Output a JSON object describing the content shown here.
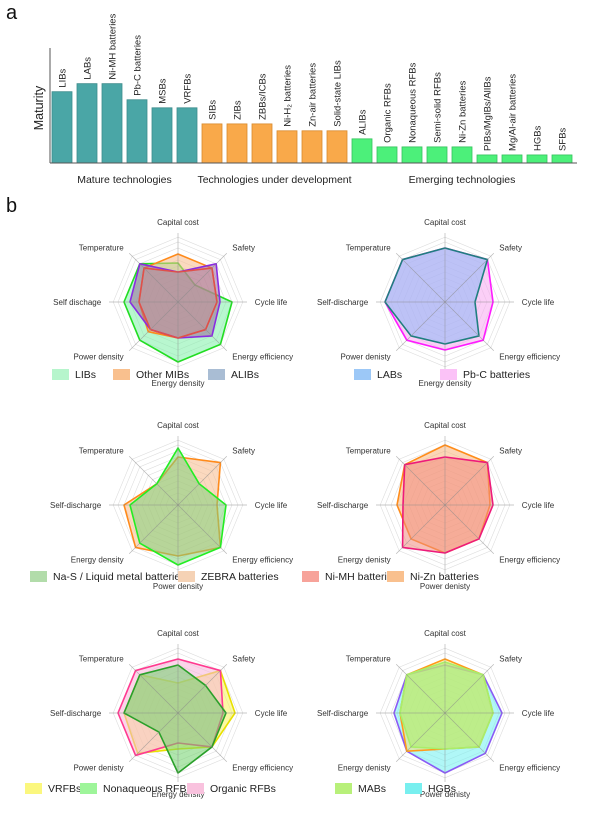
{
  "panel_labels": {
    "a": "a",
    "b": "b"
  },
  "chart_data": [
    {
      "id": "maturity",
      "type": "bar",
      "title": "",
      "xlabel": "",
      "ylabel": "Maturity",
      "ylim": [
        0,
        10
      ],
      "grid": false,
      "groups": [
        {
          "label": "Mature technologies",
          "color": "#4aa6a6",
          "stroke": "#3d8c8c",
          "categories": [
            "LIBs",
            "LABs",
            "Ni-MH batteries",
            "Pb-C batteries",
            "MSBs",
            "VRFBs"
          ],
          "values": [
            6.2,
            6.9,
            6.9,
            5.5,
            4.8,
            4.8
          ]
        },
        {
          "label": "Technologies under development",
          "color": "#f9a94a",
          "stroke": "#d88a2c",
          "categories": [
            "SIBs",
            "ZIBs",
            "ZBBs/ICBs",
            "Ni-H₂ batteries",
            "Zn-air batteries",
            "Solid-state LIBs"
          ],
          "values": [
            3.4,
            3.4,
            3.4,
            2.8,
            2.8,
            2.8
          ]
        },
        {
          "label": "Emerging technologies",
          "color": "#4cf07a",
          "stroke": "#34c25c",
          "categories": [
            "ALIBs",
            "Organic RFBs",
            "Nonaqueous RFBs",
            "Semi-solid RFBs",
            "Ni-Zn batteries",
            "PIBs/MgIBs/AlIBs",
            "Mg/Al-air batteries",
            "HGBs",
            "SFBs"
          ],
          "values": [
            2.1,
            1.4,
            1.4,
            1.4,
            1.4,
            0.7,
            0.7,
            0.7,
            0.7
          ]
        }
      ]
    },
    {
      "id": "radar-1",
      "type": "radar",
      "axes": [
        "Capital cost",
        "Safety",
        "Cycle life",
        "Energy efficiency",
        "Energy density",
        "Power density",
        "Self dischage",
        "Temperature"
      ],
      "scale_max": 10,
      "rings": 5,
      "series": [
        {
          "name": "LIBs",
          "fill": "#7ef0a8",
          "stroke": "#22dd22",
          "legend": "#b6f5cc",
          "values": [
            6.5,
            4,
            9,
            10,
            10,
            9,
            9,
            9
          ]
        },
        {
          "name": "Other MIBs",
          "fill": "#f7b98a",
          "stroke": "#ff8a1a",
          "legend": "#f9c08e",
          "values": [
            8,
            8,
            6.5,
            6.5,
            6,
            7,
            6.5,
            8
          ]
        },
        {
          "name": "ALIBs",
          "fill": "#9a6a9a",
          "stroke": "#8a2be2",
          "legend": "#a9bdd4",
          "values": [
            5,
            9,
            7,
            8,
            6,
            6.5,
            8,
            9
          ]
        },
        {
          "name": "",
          "fill": "none",
          "stroke": "#e0504a",
          "legend": null,
          "values": [
            5,
            8,
            6.5,
            6.5,
            6,
            6.5,
            6.5,
            8
          ]
        }
      ],
      "legend": [
        "LIBs",
        "Other MIBs",
        "ALIBs"
      ]
    },
    {
      "id": "radar-2",
      "type": "radar",
      "axes": [
        "Capital cost",
        "Safety",
        "Cycle life",
        "Energy efficiency",
        "Energy density",
        "Power denisty",
        "Self-discharge",
        "Temperature"
      ],
      "scale_max": 10,
      "rings": 5,
      "series": [
        {
          "name": "Pb-C batteries",
          "fill": "#f7a8f0",
          "stroke": "#ff1aff",
          "legend": "#fbc2f7",
          "values": [
            9,
            10,
            8,
            9,
            8,
            9,
            10,
            10
          ]
        },
        {
          "name": "LABs",
          "fill": "#8ab8f5",
          "stroke": "#1f7f7f",
          "legend": "#9cc8f7",
          "values": [
            9,
            10,
            5,
            8,
            7,
            8,
            10,
            10
          ]
        }
      ],
      "legend": [
        "LABs",
        "Pb-C batteries"
      ]
    },
    {
      "id": "radar-3",
      "type": "radar",
      "axes": [
        "Capital cost",
        "Safety",
        "Cycle life",
        "Energy efficiency",
        "Power density",
        "Energy density",
        "Self-discharge",
        "Temperature"
      ],
      "scale_max": 10,
      "rings": 5,
      "series": [
        {
          "name": "ZEBRA batteries",
          "fill": "#f7b98a",
          "stroke": "#ff8a1a",
          "legend": "#f5d2b5",
          "values": [
            8,
            10,
            6.5,
            10,
            8.5,
            10,
            9,
            5
          ]
        },
        {
          "name": "Na-S / Liquid metal batteries",
          "fill": "#7fd27a",
          "stroke": "#22ee22",
          "legend": "#b2dcaa",
          "values": [
            9.5,
            5,
            8,
            10,
            10,
            9,
            8,
            5
          ]
        }
      ],
      "legend": [
        "Na-S / Liquid metal batteries",
        "ZEBRA batteries"
      ]
    },
    {
      "id": "radar-4",
      "type": "radar",
      "axes": [
        "Capital cost",
        "Safety",
        "Cycle life",
        "Energy efficiency",
        "Power denisty",
        "Energy denisty",
        "Self-discharge",
        "Temperature"
      ],
      "scale_max": 10,
      "rings": 5,
      "series": [
        {
          "name": "Ni-Zn batteries",
          "fill": "#f9b57a",
          "stroke": "#ff8c1a",
          "legend": "#f9c08e",
          "values": [
            10,
            10,
            7.5,
            8,
            8,
            8,
            8,
            9.5
          ]
        },
        {
          "name": "Ni-MH batteries",
          "fill": "#f08a80",
          "stroke": "#ee1a7a",
          "legend": "#f7a39a",
          "values": [
            8,
            10,
            8,
            8,
            8,
            10,
            7,
            9.5
          ]
        }
      ],
      "legend": [
        "Ni-MH batteries",
        "Ni-Zn batteries"
      ]
    },
    {
      "id": "radar-5",
      "type": "radar",
      "axes": [
        "Capital cost",
        "Safety",
        "Cycle life",
        "Energy efficiency",
        "Energy density",
        "Power denisty",
        "Self-discharge",
        "Temperature"
      ],
      "scale_max": 10,
      "rings": 5,
      "series": [
        {
          "name": "VRFBs",
          "fill": "#f7f25a",
          "stroke": "#e8e000",
          "legend": "#fbf77e",
          "values": [
            5,
            10,
            9.5,
            8,
            6,
            9.5,
            9,
            9
          ]
        },
        {
          "name": "Organic RFBs",
          "fill": "#f7b3d9",
          "stroke": "#ff3a90",
          "legend": "#f9c2de",
          "values": [
            9,
            10,
            7.5,
            8,
            5,
            10,
            10,
            10
          ]
        },
        {
          "name": "Nonaqueous RFBs",
          "fill": "#6fd26a",
          "stroke": "#2aa02a",
          "legend": "#9ef59a",
          "values": [
            8,
            6.5,
            8,
            8,
            10,
            4.5,
            9,
            9
          ]
        }
      ],
      "legend": [
        "VRFBs",
        "Nonaqueous RFBs",
        "Organic RFBs"
      ]
    },
    {
      "id": "radar-6",
      "type": "radar",
      "axes": [
        "Capital cost",
        "Safety",
        "Cycle life",
        "Energy efficiency",
        "Power denisty",
        "Energy denisty",
        "Self-discharge",
        "Temperature"
      ],
      "scale_max": 10,
      "rings": 5,
      "series": [
        {
          "name": "HGBs",
          "fill": "#6ff0f0",
          "stroke": "#8a5af5",
          "legend": "#78efef",
          "values": [
            8,
            9,
            9.5,
            9.5,
            10,
            9,
            8.5,
            9
          ]
        },
        {
          "name": "",
          "fill": "#f7e07a",
          "stroke": "#ff9a1a",
          "legend": null,
          "values": [
            9,
            9,
            8,
            8,
            6,
            9,
            7.5,
            9
          ]
        },
        {
          "name": "MABs",
          "fill": "#a8ee6a",
          "stroke": "#a8ee6a",
          "legend": "#b8f07a",
          "values": [
            8.5,
            9,
            8,
            8,
            6,
            8,
            7.5,
            9
          ]
        }
      ],
      "legend": [
        "MABs",
        "HGBs"
      ]
    }
  ]
}
